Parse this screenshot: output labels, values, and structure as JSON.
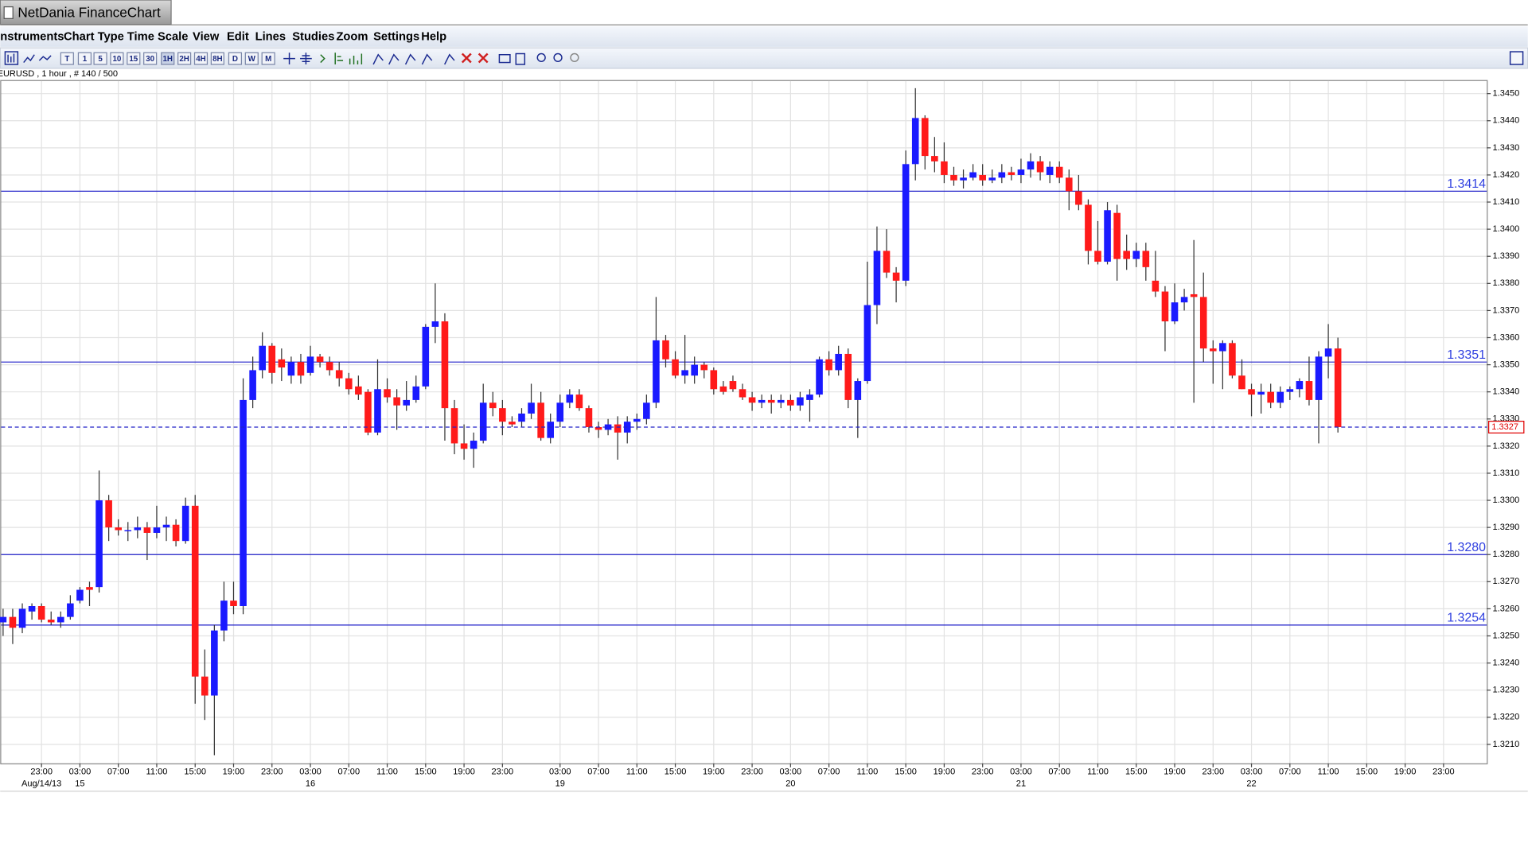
{
  "app": {
    "title": "NetDania FinanceChart",
    "menu": [
      "nstruments",
      "Chart Type",
      "Time Scale",
      "View",
      "Edit",
      "Lines",
      "Studies",
      "Zoom",
      "Settings",
      "Help"
    ],
    "toolbar": [
      "T",
      "1",
      "5",
      "10",
      "15",
      "30",
      "1H",
      "2H",
      "4H",
      "8H",
      "D",
      "W",
      "M"
    ],
    "info": "EURUSD , 1 hour , # 140 / 500"
  },
  "chart_data": {
    "type": "candlestick",
    "up_color": "#1a1aff",
    "down_color": "#ff1a1a",
    "grid": true,
    "open": [
      1.3255,
      1.3257,
      1.3253,
      1.3259,
      1.3261,
      1.3256,
      1.3255,
      1.3257,
      1.3263,
      1.3268,
      1.3268,
      1.33,
      1.329,
      1.3289,
      1.3289,
      1.329,
      1.3288,
      1.329,
      1.3291,
      1.3285,
      1.3298,
      1.3235,
      1.3228,
      1.3252,
      1.3263,
      1.3261,
      1.3337,
      1.3348,
      1.3357,
      1.3352,
      1.3346,
      1.3351,
      1.3347,
      1.3353,
      1.3351,
      1.3348,
      1.3345,
      1.3342,
      1.334,
      1.3325,
      1.3341,
      1.3338,
      1.3335,
      1.3337,
      1.3342,
      1.3364,
      1.3366,
      1.3334,
      1.3321,
      1.3319,
      1.3322,
      1.3336,
      1.3334,
      1.3329,
      1.3329,
      1.3332,
      1.3336,
      1.3323,
      1.3329,
      1.3336,
      1.3339,
      1.3334,
      1.3327,
      1.3326,
      1.3328,
      1.3325,
      1.3329,
      1.333,
      1.3336,
      1.3359,
      1.3352,
      1.3346,
      1.3346,
      1.335,
      1.3348,
      1.3342,
      1.3344,
      1.3341,
      1.3338,
      1.3336,
      1.3337,
      1.3336,
      1.3337,
      1.3335,
      1.3337,
      1.3339,
      1.3352,
      1.3348,
      1.3354,
      1.3337,
      1.3344,
      1.3372,
      1.3392,
      1.3384,
      1.3381,
      1.3424,
      1.3441,
      1.3427,
      1.3425,
      1.342,
      1.3418,
      1.3419,
      1.342,
      1.3418,
      1.3419,
      1.3421,
      1.342,
      1.3422,
      1.3425,
      1.342,
      1.3423,
      1.3419,
      1.3414,
      1.3409,
      1.3392,
      1.3388,
      1.3406,
      1.3392,
      1.3389,
      1.3392,
      1.3381,
      1.3377,
      1.3366,
      1.3373,
      1.3376,
      1.3375,
      1.3356,
      1.3355,
      1.3358,
      1.3346,
      1.3341,
      1.3339,
      1.334,
      1.3336,
      1.334,
      1.3341,
      1.3344,
      1.3337,
      1.3353,
      1.3356
    ],
    "high": [
      1.326,
      1.326,
      1.3262,
      1.3262,
      1.3262,
      1.3259,
      1.3259,
      1.3265,
      1.3268,
      1.327,
      1.3311,
      1.3302,
      1.3293,
      1.3292,
      1.3294,
      1.3292,
      1.3298,
      1.3294,
      1.3293,
      1.3301,
      1.3302,
      1.3245,
      1.3254,
      1.327,
      1.327,
      1.3345,
      1.3353,
      1.3362,
      1.3358,
      1.3356,
      1.3353,
      1.3354,
      1.3357,
      1.3354,
      1.3353,
      1.3351,
      1.3347,
      1.3346,
      1.3341,
      1.3352,
      1.3345,
      1.3341,
      1.3344,
      1.3346,
      1.3365,
      1.338,
      1.3369,
      1.3337,
      1.3328,
      1.3325,
      1.3343,
      1.334,
      1.3337,
      1.3331,
      1.3334,
      1.3343,
      1.334,
      1.3332,
      1.3339,
      1.3341,
      1.3341,
      1.3335,
      1.3329,
      1.333,
      1.3331,
      1.3331,
      1.3332,
      1.3339,
      1.3375,
      1.3361,
      1.3355,
      1.3361,
      1.3353,
      1.3351,
      1.3349,
      1.3344,
      1.3346,
      1.3343,
      1.334,
      1.3339,
      1.3339,
      1.3339,
      1.3339,
      1.334,
      1.3341,
      1.3353,
      1.3355,
      1.3357,
      1.3356,
      1.3345,
      1.3388,
      1.3401,
      1.34,
      1.3386,
      1.3429,
      1.3452,
      1.3442,
      1.3434,
      1.3432,
      1.3423,
      1.3422,
      1.3424,
      1.3424,
      1.3422,
      1.3424,
      1.3423,
      1.3426,
      1.3428,
      1.3427,
      1.3425,
      1.3425,
      1.3422,
      1.342,
      1.3411,
      1.3403,
      1.341,
      1.3409,
      1.3398,
      1.3395,
      1.3395,
      1.3392,
      1.3379,
      1.338,
      1.3378,
      1.3396,
      1.3384,
      1.3359,
      1.3359,
      1.3359,
      1.3352,
      1.3343,
      1.3343,
      1.3343,
      1.3342,
      1.3342,
      1.3345,
      1.3353,
      1.3355,
      1.3365,
      1.336
    ],
    "low": [
      1.325,
      1.3247,
      1.3251,
      1.3256,
      1.3255,
      1.3254,
      1.3253,
      1.3256,
      1.3262,
      1.3261,
      1.3266,
      1.3285,
      1.3287,
      1.3285,
      1.3286,
      1.3278,
      1.3286,
      1.3285,
      1.3283,
      1.3284,
      1.3225,
      1.3219,
      1.3206,
      1.3248,
      1.3258,
      1.3258,
      1.3334,
      1.3345,
      1.3343,
      1.3344,
      1.3343,
      1.3343,
      1.3346,
      1.3349,
      1.3346,
      1.3342,
      1.3339,
      1.3337,
      1.3324,
      1.3324,
      1.3336,
      1.3326,
      1.3333,
      1.3336,
      1.3341,
      1.3358,
      1.3322,
      1.3317,
      1.3315,
      1.3312,
      1.3321,
      1.3331,
      1.3324,
      1.3327,
      1.3327,
      1.333,
      1.3322,
      1.3321,
      1.3327,
      1.3334,
      1.3333,
      1.3325,
      1.3323,
      1.3324,
      1.3315,
      1.3321,
      1.3326,
      1.3328,
      1.3334,
      1.3349,
      1.3345,
      1.3343,
      1.3343,
      1.3345,
      1.3339,
      1.3339,
      1.334,
      1.3337,
      1.3333,
      1.3334,
      1.3332,
      1.3334,
      1.3333,
      1.3333,
      1.3329,
      1.3338,
      1.3346,
      1.3346,
      1.3334,
      1.3323,
      1.3343,
      1.3365,
      1.3382,
      1.3373,
      1.3379,
      1.3418,
      1.3422,
      1.3421,
      1.3417,
      1.3416,
      1.3415,
      1.3418,
      1.3416,
      1.3417,
      1.3417,
      1.3418,
      1.3417,
      1.3419,
      1.3418,
      1.3417,
      1.3417,
      1.3407,
      1.3407,
      1.3387,
      1.3387,
      1.3387,
      1.3381,
      1.3385,
      1.3386,
      1.3381,
      1.3375,
      1.3355,
      1.3365,
      1.337,
      1.3336,
      1.3351,
      1.3343,
      1.3341,
      1.3345,
      1.3341,
      1.3331,
      1.3332,
      1.3334,
      1.3334,
      1.3337,
      1.3338,
      1.3335,
      1.3321,
      1.3345,
      1.3325
    ],
    "close": [
      1.3257,
      1.3253,
      1.326,
      1.3261,
      1.3256,
      1.3255,
      1.3257,
      1.3262,
      1.3267,
      1.3267,
      1.33,
      1.329,
      1.3289,
      1.3289,
      1.329,
      1.3288,
      1.329,
      1.3291,
      1.3285,
      1.3298,
      1.3235,
      1.3228,
      1.3252,
      1.3263,
      1.3261,
      1.3337,
      1.3348,
      1.3357,
      1.3347,
      1.3349,
      1.3351,
      1.3346,
      1.3353,
      1.3351,
      1.3348,
      1.3345,
      1.3341,
      1.3339,
      1.3325,
      1.3341,
      1.3338,
      1.3335,
      1.3337,
      1.3342,
      1.3364,
      1.3366,
      1.3334,
      1.3321,
      1.3319,
      1.3322,
      1.3336,
      1.3334,
      1.3329,
      1.3328,
      1.3332,
      1.3336,
      1.3323,
      1.3329,
      1.3336,
      1.3339,
      1.3334,
      1.3327,
      1.3326,
      1.3328,
      1.3325,
      1.3329,
      1.333,
      1.3336,
      1.3359,
      1.3352,
      1.3346,
      1.3348,
      1.335,
      1.3348,
      1.3341,
      1.334,
      1.3341,
      1.3338,
      1.3336,
      1.3337,
      1.3336,
      1.3337,
      1.3335,
      1.3338,
      1.3339,
      1.3352,
      1.3348,
      1.3354,
      1.3337,
      1.3344,
      1.3372,
      1.3392,
      1.3384,
      1.3381,
      1.3424,
      1.3441,
      1.3427,
      1.3425,
      1.342,
      1.3418,
      1.3419,
      1.3421,
      1.3418,
      1.3419,
      1.3421,
      1.342,
      1.3422,
      1.3425,
      1.3421,
      1.3423,
      1.3419,
      1.3414,
      1.3409,
      1.3392,
      1.3388,
      1.3407,
      1.3389,
      1.3389,
      1.3392,
      1.3386,
      1.3377,
      1.3366,
      1.3373,
      1.3375,
      1.3375,
      1.3356,
      1.3355,
      1.3358,
      1.3346,
      1.3341,
      1.3339,
      1.334,
      1.3336,
      1.334,
      1.3341,
      1.3344,
      1.3337,
      1.3353,
      1.3356,
      1.3327
    ],
    "xlim": [
      -0.3,
      154.5
    ],
    "xticks": [
      {
        "value": 4,
        "label": "23:00"
      },
      {
        "value": 8,
        "label": "03:00"
      },
      {
        "value": 12,
        "label": "07:00"
      },
      {
        "value": 16,
        "label": "11:00"
      },
      {
        "value": 20,
        "label": "15:00"
      },
      {
        "value": 24,
        "label": "19:00"
      },
      {
        "value": 28,
        "label": "23:00"
      },
      {
        "value": 32,
        "label": "03:00"
      },
      {
        "value": 36,
        "label": "07:00"
      },
      {
        "value": 40,
        "label": "11:00"
      },
      {
        "value": 44,
        "label": "15:00"
      },
      {
        "value": 48,
        "label": "19:00"
      },
      {
        "value": 52,
        "label": "23:00"
      },
      {
        "value": 58,
        "label": "03:00"
      },
      {
        "value": 62,
        "label": "07:00"
      },
      {
        "value": 66,
        "label": "11:00"
      },
      {
        "value": 70,
        "label": "15:00"
      },
      {
        "value": 74,
        "label": "19:00"
      },
      {
        "value": 78,
        "label": "23:00"
      },
      {
        "value": 82,
        "label": "03:00"
      },
      {
        "value": 86,
        "label": "07:00"
      },
      {
        "value": 90,
        "label": "11:00"
      },
      {
        "value": 94,
        "label": "15:00"
      },
      {
        "value": 98,
        "label": "19:00"
      },
      {
        "value": 102,
        "label": "23:00"
      },
      {
        "value": 106,
        "label": "03:00"
      },
      {
        "value": 110,
        "label": "07:00"
      },
      {
        "value": 114,
        "label": "11:00"
      },
      {
        "value": 118,
        "label": "15:00"
      },
      {
        "value": 122,
        "label": "19:00"
      },
      {
        "value": 126,
        "label": "23:00"
      },
      {
        "value": 130,
        "label": "03:00"
      },
      {
        "value": 134,
        "label": "07:00"
      },
      {
        "value": 138,
        "label": "11:00"
      },
      {
        "value": 142,
        "label": "15:00"
      },
      {
        "value": 146,
        "label": "19:00"
      },
      {
        "value": 150,
        "label": "23:00"
      }
    ],
    "date_ticks": [
      {
        "value": 4,
        "label": "Aug/14/13"
      },
      {
        "value": 8,
        "label": "15"
      },
      {
        "value": 32,
        "label": "16"
      },
      {
        "value": 58,
        "label": "19"
      },
      {
        "value": 82,
        "label": "20"
      },
      {
        "value": 106,
        "label": "21"
      },
      {
        "value": 130,
        "label": "22"
      }
    ],
    "ylim": [
      1.3203,
      1.3455
    ],
    "yticks": [
      {
        "value": 1.321,
        "label": "1.3210"
      },
      {
        "value": 1.322,
        "label": "1.3220"
      },
      {
        "value": 1.323,
        "label": "1.3230"
      },
      {
        "value": 1.324,
        "label": "1.3240"
      },
      {
        "value": 1.325,
        "label": "1.3250"
      },
      {
        "value": 1.326,
        "label": "1.3260"
      },
      {
        "value": 1.327,
        "label": "1.3270"
      },
      {
        "value": 1.328,
        "label": "1.3280"
      },
      {
        "value": 1.329,
        "label": "1.3290"
      },
      {
        "value": 1.33,
        "label": "1.3300"
      },
      {
        "value": 1.331,
        "label": "1.3310"
      },
      {
        "value": 1.332,
        "label": "1.3320"
      },
      {
        "value": 1.333,
        "label": "1.3330"
      },
      {
        "value": 1.334,
        "label": "1.3340"
      },
      {
        "value": 1.335,
        "label": "1.3350"
      },
      {
        "value": 1.336,
        "label": "1.3360"
      },
      {
        "value": 1.337,
        "label": "1.3370"
      },
      {
        "value": 1.338,
        "label": "1.3380"
      },
      {
        "value": 1.339,
        "label": "1.3390"
      },
      {
        "value": 1.34,
        "label": "1.3400"
      },
      {
        "value": 1.341,
        "label": "1.3410"
      },
      {
        "value": 1.342,
        "label": "1.3420"
      },
      {
        "value": 1.343,
        "label": "1.3430"
      },
      {
        "value": 1.344,
        "label": "1.3440"
      },
      {
        "value": 1.345,
        "label": "1.3450"
      }
    ],
    "levels": [
      {
        "value": 1.3414,
        "label": "1.3414"
      },
      {
        "value": 1.3351,
        "label": "1.3351"
      },
      {
        "value": 1.328,
        "label": "1.3280"
      },
      {
        "value": 1.3254,
        "label": "1.3254"
      }
    ],
    "level_color": "#2020c8",
    "current": {
      "value": 1.3327,
      "label": "1.3327"
    },
    "current_color": "#e00000"
  }
}
